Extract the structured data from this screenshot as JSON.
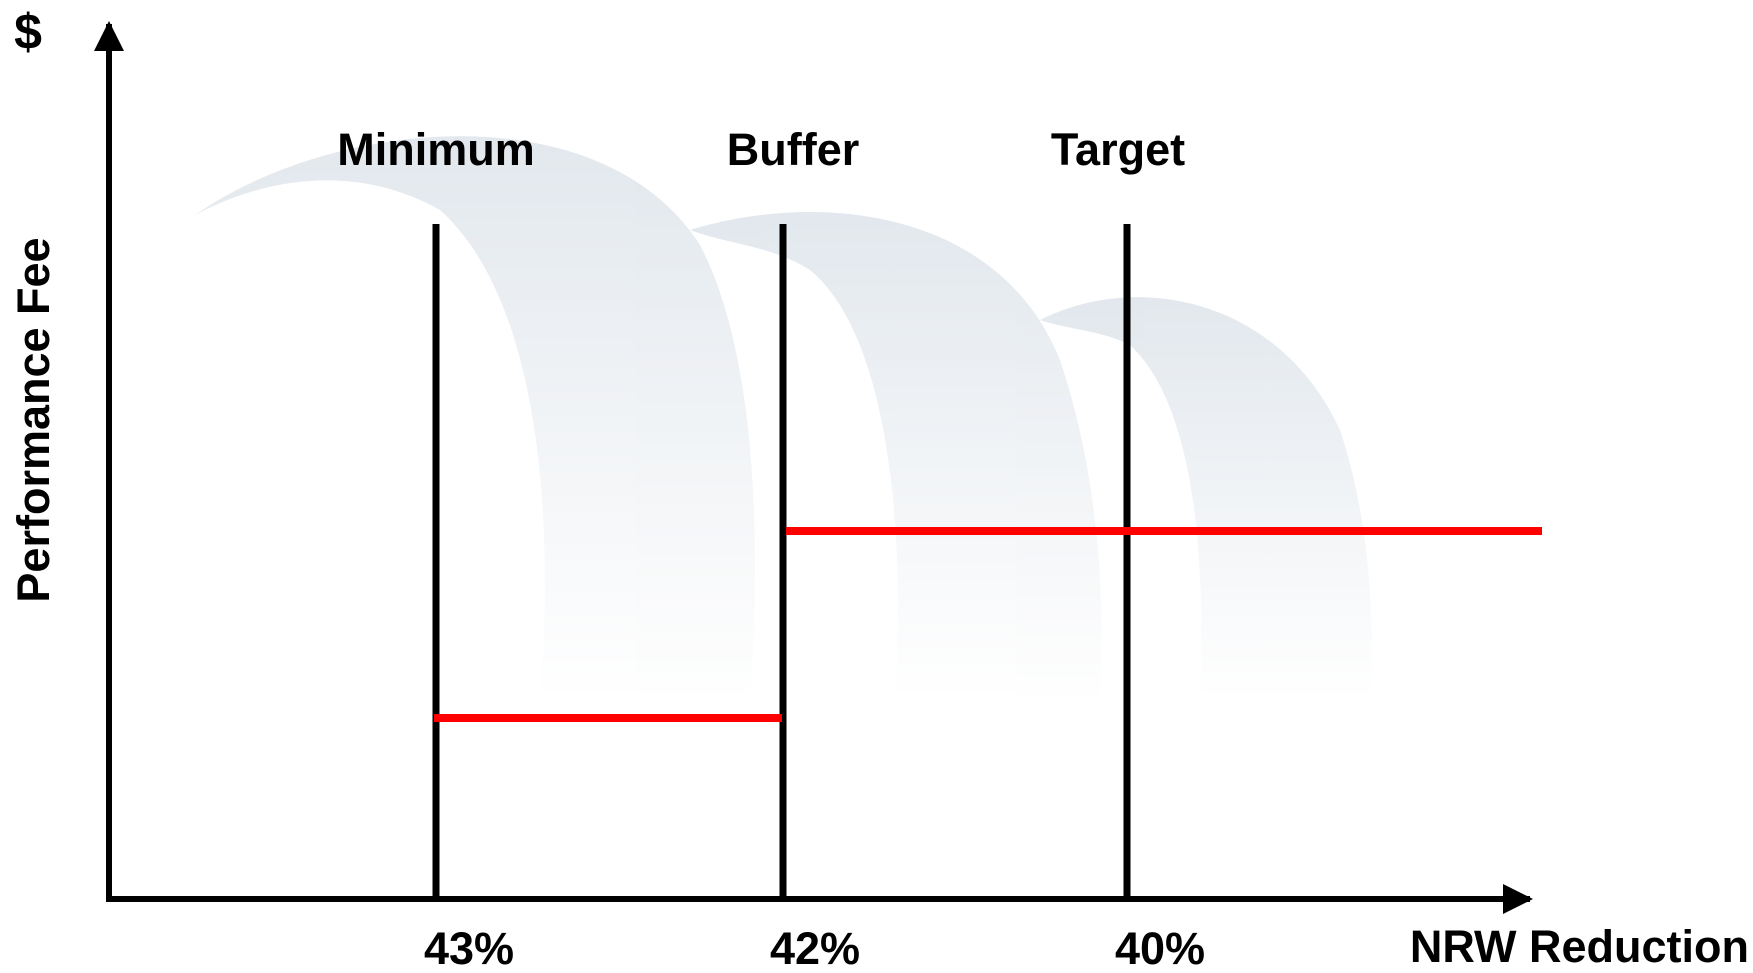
{
  "y_axis": {
    "symbol": "$",
    "title": "Performance Fee"
  },
  "x_axis": {
    "title": "NRW Reduction"
  },
  "thresholds": [
    {
      "name": "Minimum",
      "label": "43%"
    },
    {
      "name": "Buffer",
      "label": "42%"
    },
    {
      "name": "Target",
      "label": "40%"
    }
  ]
}
